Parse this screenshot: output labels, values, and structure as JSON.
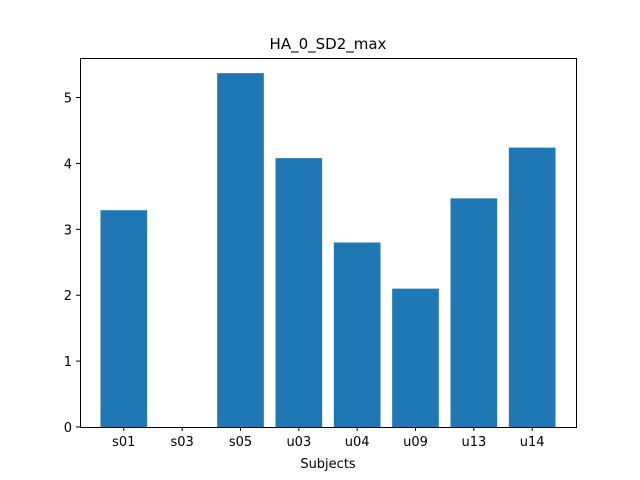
{
  "chart_data": {
    "type": "bar",
    "title": "HA_0_SD2_max",
    "xlabel": "Subjects",
    "ylabel": "",
    "categories": [
      "s01",
      "s03",
      "s05",
      "u03",
      "u04",
      "u09",
      "u13",
      "u14"
    ],
    "values": [
      3.29,
      0.0,
      5.37,
      4.08,
      2.8,
      2.1,
      3.47,
      4.24
    ],
    "ylim": [
      0,
      5.6
    ],
    "yticks": [
      0,
      1,
      2,
      3,
      4,
      5
    ],
    "bar_color": "#1f77b4",
    "grid": false,
    "legend": "none"
  }
}
